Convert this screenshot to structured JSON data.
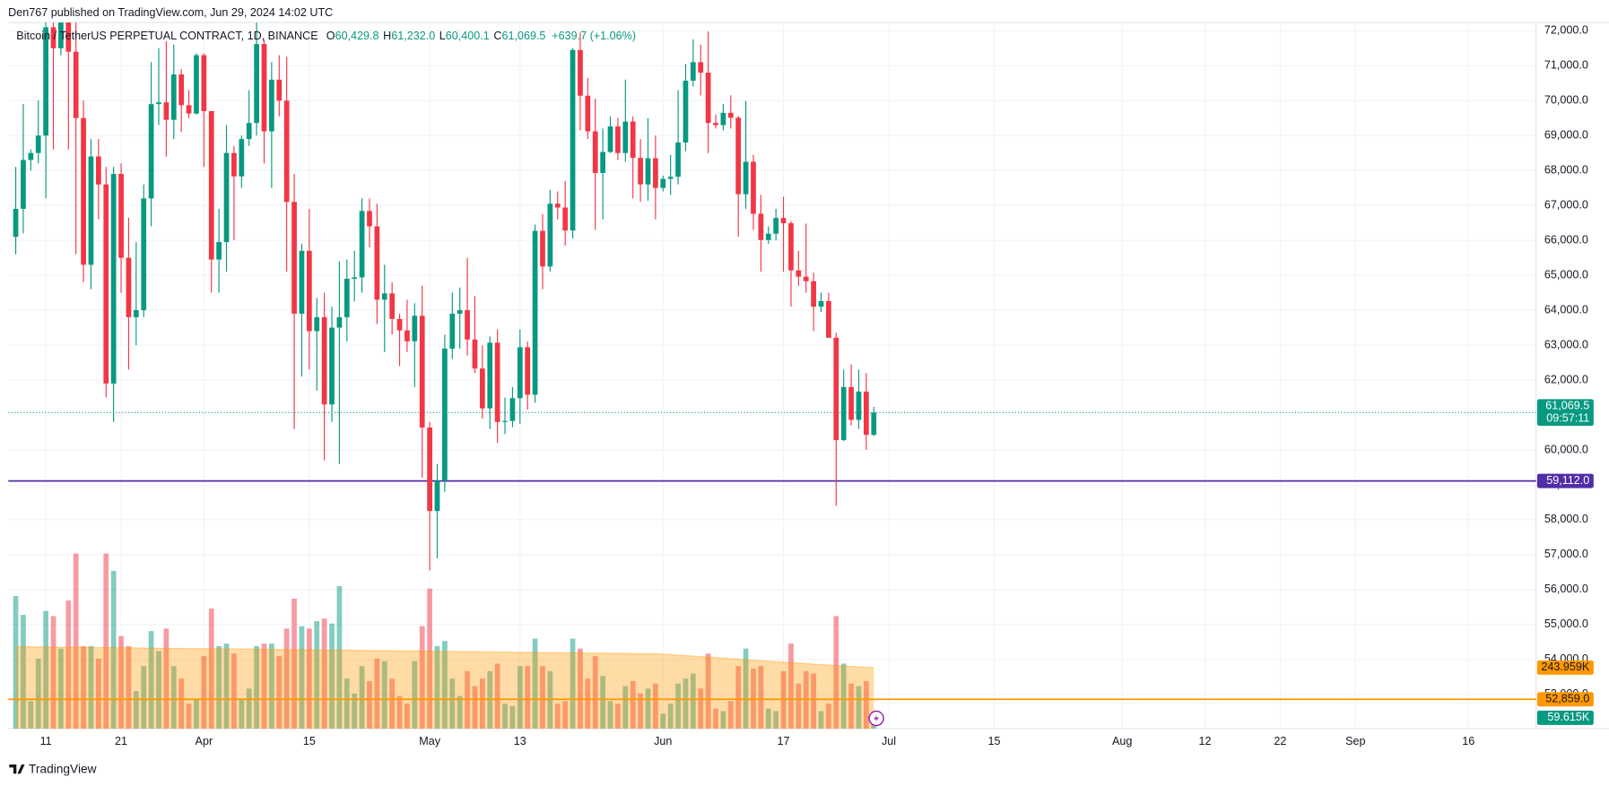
{
  "publisher": "Den767 published on TradingView.com, Jun 29, 2024 14:02 UTC",
  "brand": "TradingView",
  "chart_data": {
    "type": "candlestick",
    "legend": {
      "symbol": "Bitcoin / TetherUS PERPETUAL CONTRACT, 1D, BINANCE",
      "items": [
        {
          "key": "O",
          "value": "60,429.8"
        },
        {
          "key": "H",
          "value": "61,232.0"
        },
        {
          "key": "L",
          "value": "60,400.1"
        },
        {
          "key": "C",
          "value": "61,069.5"
        }
      ],
      "change": "+639.7 (+1.06%)"
    },
    "up_color": "#089981",
    "down_color": "#f23645",
    "x": [
      "2024-03-07",
      "2024-03-08",
      "2024-03-09",
      "2024-03-10",
      "2024-03-11",
      "2024-03-12",
      "2024-03-13",
      "2024-03-14",
      "2024-03-15",
      "2024-03-16",
      "2024-03-17",
      "2024-03-18",
      "2024-03-19",
      "2024-03-20",
      "2024-03-21",
      "2024-03-22",
      "2024-03-23",
      "2024-03-24",
      "2024-03-25",
      "2024-03-26",
      "2024-03-27",
      "2024-03-28",
      "2024-03-29",
      "2024-03-30",
      "2024-03-31",
      "2024-04-01",
      "2024-04-02",
      "2024-04-03",
      "2024-04-04",
      "2024-04-05",
      "2024-04-06",
      "2024-04-07",
      "2024-04-08",
      "2024-04-09",
      "2024-04-10",
      "2024-04-11",
      "2024-04-12",
      "2024-04-13",
      "2024-04-14",
      "2024-04-15",
      "2024-04-16",
      "2024-04-17",
      "2024-04-18",
      "2024-04-19",
      "2024-04-20",
      "2024-04-21",
      "2024-04-22",
      "2024-04-23",
      "2024-04-24",
      "2024-04-25",
      "2024-04-26",
      "2024-04-27",
      "2024-04-28",
      "2024-04-29",
      "2024-04-30",
      "2024-05-01",
      "2024-05-02",
      "2024-05-03",
      "2024-05-04",
      "2024-05-05",
      "2024-05-06",
      "2024-05-07",
      "2024-05-08",
      "2024-05-09",
      "2024-05-10",
      "2024-05-11",
      "2024-05-12",
      "2024-05-13",
      "2024-05-14",
      "2024-05-15",
      "2024-05-16",
      "2024-05-17",
      "2024-05-18",
      "2024-05-19",
      "2024-05-20",
      "2024-05-21",
      "2024-05-22",
      "2024-05-23",
      "2024-05-24",
      "2024-05-25",
      "2024-05-26",
      "2024-05-27",
      "2024-05-28",
      "2024-05-29",
      "2024-05-30",
      "2024-05-31",
      "2024-06-01",
      "2024-06-02",
      "2024-06-03",
      "2024-06-04",
      "2024-06-05",
      "2024-06-06",
      "2024-06-07",
      "2024-06-08",
      "2024-06-09",
      "2024-06-10",
      "2024-06-11",
      "2024-06-12",
      "2024-06-13",
      "2024-06-14",
      "2024-06-15",
      "2024-06-16",
      "2024-06-17",
      "2024-06-18",
      "2024-06-19",
      "2024-06-20",
      "2024-06-21",
      "2024-06-22",
      "2024-06-23",
      "2024-06-24",
      "2024-06-25",
      "2024-06-26",
      "2024-06-27",
      "2024-06-28",
      "2024-06-29"
    ],
    "open": [
      66100,
      66900,
      68300,
      68500,
      69000,
      72100,
      71500,
      73100,
      71400,
      69500,
      65300,
      68400,
      67600,
      61900,
      67900,
      65500,
      63800,
      64000,
      67200,
      69900,
      69950,
      69450,
      70750,
      69870,
      69630,
      71300,
      69700,
      65450,
      65950,
      68500,
      67830,
      68900,
      69360,
      71620,
      69120,
      70600,
      70000,
      67100,
      63900,
      65700,
      63400,
      63800,
      61300,
      63500,
      63800,
      64900,
      64940,
      66840,
      66400,
      64300,
      64480,
      63750,
      63420,
      63110,
      63840,
      60640,
      58250,
      59120,
      62900,
      63900,
      64000,
      63160,
      62330,
      61190,
      63070,
      60800,
      60830,
      61480,
      62940,
      61580,
      66270,
      65250,
      67050,
      66940,
      66280,
      71450,
      70140,
      69120,
      67930,
      68530,
      69260,
      68500,
      69400,
      68360,
      67600,
      68350,
      67500,
      67760,
      67820,
      68800,
      70570,
      71100,
      70800,
      69360,
      69300,
      69650,
      69510,
      67320,
      68250,
      66760,
      66010,
      66190,
      66640,
      66490,
      65140,
      64960,
      64830,
      64100,
      64260,
      63210,
      60280,
      61800,
      60860,
      61670,
      60429.8
    ],
    "high": [
      68100,
      69900,
      68600,
      70000,
      72900,
      73000,
      73650,
      73800,
      72400,
      70000,
      68900,
      68900,
      68100,
      68100,
      68200,
      66650,
      65950,
      67600,
      71100,
      71500,
      71700,
      71600,
      70900,
      70300,
      71350,
      71350,
      69700,
      66900,
      69300,
      68700,
      69000,
      70300,
      72800,
      71750,
      71100,
      71300,
      71250,
      67900,
      65900,
      66900,
      64350,
      64500,
      64100,
      65400,
      65450,
      65700,
      67200,
      67200,
      67050,
      65300,
      64800,
      63900,
      64300,
      64200,
      64700,
      60800,
      59600,
      63300,
      64500,
      64650,
      65500,
      64400,
      62990,
      63250,
      63450,
      61500,
      61800,
      63450,
      63100,
      66450,
      66750,
      67450,
      67400,
      67700,
      71500,
      71950,
      70650,
      70050,
      69200,
      69550,
      69500,
      70600,
      69550,
      68900,
      69500,
      69000,
      67850,
      68450,
      70300,
      71050,
      71750,
      71600,
      71980,
      69600,
      69900,
      70150,
      69560,
      69990,
      68450,
      67300,
      66400,
      66900,
      67250,
      66550,
      65700,
      66480,
      65070,
      64500,
      64500,
      63350,
      62300,
      62450,
      62300,
      62200,
      61232
    ],
    "low": [
      65600,
      66200,
      68000,
      68200,
      67200,
      68600,
      71300,
      68600,
      65600,
      64800,
      64600,
      66600,
      61500,
      60800,
      64500,
      62300,
      63000,
      63800,
      66400,
      69300,
      68400,
      68900,
      69100,
      69500,
      69600,
      68100,
      64500,
      64500,
      65100,
      66000,
      67500,
      68700,
      69000,
      68200,
      67500,
      69550,
      65100,
      60600,
      62100,
      62300,
      61700,
      59700,
      60800,
      59600,
      63100,
      64250,
      64500,
      65800,
      63600,
      62800,
      63300,
      62400,
      62800,
      61800,
      59200,
      56550,
      56900,
      58800,
      62600,
      62900,
      62700,
      62200,
      60900,
      60600,
      60200,
      60450,
      60650,
      60750,
      61150,
      61350,
      64600,
      65100,
      66600,
      65850,
      66050,
      69150,
      68900,
      66300,
      66600,
      68500,
      68300,
      68250,
      67200,
      67100,
      67130,
      66600,
      67400,
      67300,
      67600,
      68550,
      70400,
      70150,
      68500,
      69200,
      69150,
      69200,
      66100,
      66900,
      66300,
      65100,
      65900,
      66000,
      65100,
      64100,
      64700,
      64500,
      63400,
      63950,
      63200,
      58400,
      60250,
      60700,
      60600,
      60000,
      60400.1
    ],
    "close": [
      66900,
      68300,
      68500,
      69000,
      72100,
      71500,
      73100,
      71400,
      69500,
      65300,
      68400,
      67600,
      61900,
      67900,
      65500,
      63800,
      64000,
      67200,
      69900,
      69950,
      69450,
      70750,
      69870,
      69630,
      71300,
      69700,
      65450,
      65950,
      68500,
      67830,
      68900,
      69360,
      71620,
      69120,
      70600,
      70000,
      67100,
      63900,
      65700,
      63400,
      63800,
      61300,
      63500,
      63800,
      64900,
      64940,
      66840,
      66400,
      64300,
      64480,
      63750,
      63420,
      63110,
      63840,
      60640,
      58250,
      59120,
      62900,
      63900,
      64000,
      63160,
      62330,
      61190,
      63070,
      60800,
      60830,
      61480,
      62940,
      61580,
      66270,
      65250,
      67050,
      66940,
      66280,
      71450,
      70140,
      69120,
      67930,
      68530,
      69260,
      68500,
      69400,
      68360,
      67600,
      68350,
      67500,
      67760,
      67820,
      68800,
      70570,
      71100,
      70800,
      69360,
      69300,
      69650,
      69510,
      67320,
      68250,
      66760,
      66010,
      66190,
      66640,
      66490,
      65140,
      64960,
      64830,
      64100,
      64260,
      63210,
      60280,
      61800,
      60860,
      61670,
      60430,
      61069.5
    ],
    "volume": {
      "values": [
        530,
        455,
        110,
        280,
        471,
        450,
        320,
        512,
        700,
        330,
        330,
        280,
        700,
        631,
        370,
        330,
        150,
        250,
        390,
        310,
        400,
        250,
        200,
        100,
        120,
        290,
        480,
        330,
        340,
        300,
        120,
        160,
        330,
        340,
        340,
        290,
        400,
        520,
        410,
        400,
        430,
        440,
        420,
        570,
        200,
        140,
        250,
        190,
        280,
        270,
        200,
        130,
        100,
        270,
        410,
        560,
        330,
        350,
        200,
        130,
        230,
        170,
        200,
        230,
        260,
        100,
        90,
        250,
        250,
        360,
        250,
        230,
        100,
        110,
        360,
        320,
        200,
        290,
        210,
        110,
        100,
        170,
        190,
        140,
        160,
        180,
        60,
        100,
        180,
        200,
        220,
        160,
        300,
        80,
        70,
        110,
        250,
        320,
        240,
        250,
        80,
        70,
        230,
        340,
        180,
        230,
        220,
        70,
        100,
        450,
        260,
        180,
        170,
        190,
        59.615
      ],
      "last_label": "59.615K",
      "axis": "y2"
    },
    "volume_ma": {
      "values": [
        328,
        328,
        327,
        327,
        327,
        326,
        326,
        326,
        325,
        325,
        325,
        324,
        324,
        324,
        323,
        323,
        323,
        322,
        322,
        322,
        321,
        321,
        321,
        320,
        320,
        320,
        320,
        319,
        319,
        319,
        318,
        318,
        318,
        317,
        317,
        317,
        316,
        316,
        316,
        315,
        315,
        315,
        314,
        314,
        314,
        313,
        313,
        313,
        312,
        312,
        312,
        311,
        311,
        311,
        310,
        310,
        309,
        309,
        309,
        308,
        308,
        308,
        307,
        307,
        306,
        306,
        306,
        305,
        305,
        305,
        304,
        304,
        304,
        303,
        303,
        303,
        302,
        302,
        302,
        301,
        301,
        301,
        300,
        300,
        300,
        300,
        298,
        296,
        294,
        292,
        290,
        288,
        286,
        284,
        282,
        280,
        278,
        276,
        274,
        272,
        270,
        268,
        266,
        264,
        262,
        260,
        258,
        256,
        254,
        252,
        250,
        249,
        247,
        245,
        243.959
      ],
      "last_label": "243.959K",
      "color": "#ff9800",
      "axis": "y2"
    },
    "xlim": [
      "2024-03-06",
      "2024-09-25"
    ],
    "xticks": [
      {
        "value": "2024-03-11",
        "label": "11"
      },
      {
        "value": "2024-03-21",
        "label": "21"
      },
      {
        "value": "2024-04-01",
        "label": "Apr"
      },
      {
        "value": "2024-04-15",
        "label": "15"
      },
      {
        "value": "2024-05-01",
        "label": "May"
      },
      {
        "value": "2024-05-13",
        "label": "13"
      },
      {
        "value": "2024-06-01",
        "label": "Jun"
      },
      {
        "value": "2024-06-17",
        "label": "17"
      },
      {
        "value": "2024-07-01",
        "label": "Jul"
      },
      {
        "value": "2024-07-15",
        "label": "15"
      },
      {
        "value": "2024-08-01",
        "label": "Aug"
      },
      {
        "value": "2024-08-12",
        "label": "12"
      },
      {
        "value": "2024-08-22",
        "label": "22"
      },
      {
        "value": "2024-09-01",
        "label": "Sep"
      },
      {
        "value": "2024-09-16",
        "label": "16"
      }
    ],
    "ylim": [
      52020,
      72235
    ],
    "yticks": [
      {
        "value": 53000,
        "label": "53,000.0"
      },
      {
        "value": 54000,
        "label": "54,000.0"
      },
      {
        "value": 55000,
        "label": "55,000.0"
      },
      {
        "value": 56000,
        "label": "56,000.0"
      },
      {
        "value": 57000,
        "label": "57,000.0"
      },
      {
        "value": 58000,
        "label": "58,000.0"
      },
      {
        "value": 59000,
        "label": "59,000.0"
      },
      {
        "value": 60000,
        "label": "60,000.0"
      },
      {
        "value": 61000,
        "label": "61,000.0"
      },
      {
        "value": 62000,
        "label": "62,000.0"
      },
      {
        "value": 63000,
        "label": "63,000.0"
      },
      {
        "value": 64000,
        "label": "64,000.0"
      },
      {
        "value": 65000,
        "label": "65,000.0"
      },
      {
        "value": 66000,
        "label": "66,000.0"
      },
      {
        "value": 67000,
        "label": "67,000.0"
      },
      {
        "value": 68000,
        "label": "68,000.0"
      },
      {
        "value": 69000,
        "label": "69,000.0"
      },
      {
        "value": 70000,
        "label": "70,000.0"
      },
      {
        "value": 71000,
        "label": "71,000.0"
      },
      {
        "value": 72000,
        "label": "72,000.0"
      }
    ],
    "y2lim": [
      0,
      2824
    ],
    "grid": true,
    "last_price": {
      "value": 61069.5,
      "label": "61,069.5",
      "countdown": "09:57:11",
      "color": "#089981"
    },
    "hlines": [
      {
        "value": 59112,
        "label": "59,112.0",
        "color": "#512da8"
      },
      {
        "value": 52859,
        "label": "52,859.0",
        "color": "#ff9800"
      }
    ]
  }
}
